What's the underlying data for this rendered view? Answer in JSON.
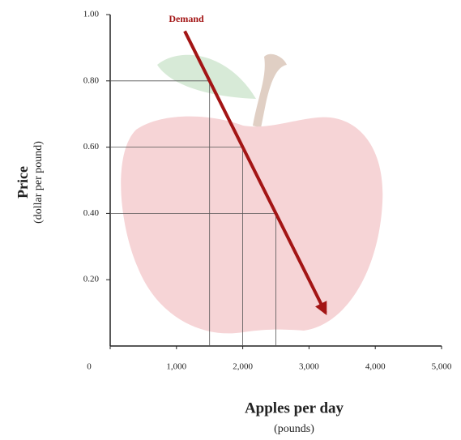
{
  "chart_data": {
    "type": "line",
    "xlabel": "Apples per day",
    "xlabel_sub": "(pounds)",
    "ylabel": "Price",
    "ylabel_sub": "(dollar per pound)",
    "xlim": [
      0,
      5000
    ],
    "ylim": [
      0,
      1
    ],
    "xticks": [
      0,
      {
        "value": 1000,
        "label": "1,000"
      },
      {
        "value": 2000,
        "label": "2,000"
      },
      {
        "value": 3000,
        "label": "3,000"
      },
      {
        "value": 4000,
        "label": "4,000"
      },
      {
        "value": 5000,
        "label": "5,000"
      }
    ],
    "yticks": [
      {
        "value": 0.2,
        "label": "0.20"
      },
      {
        "value": 0.4,
        "label": "0.40"
      },
      {
        "value": 0.6,
        "label": "0.60"
      },
      {
        "value": 0.8,
        "label": "0.80"
      },
      {
        "value": 1,
        "label": "1.00"
      }
    ],
    "series": [
      {
        "name": "Demand",
        "color": "#a31515",
        "x": [
          1125,
          1500,
          2000,
          2500,
          3250
        ],
        "values": [
          0.95,
          0.8,
          0.6,
          0.4,
          0.1
        ]
      }
    ],
    "reference_points": [
      1,
      2,
      3
    ]
  }
}
